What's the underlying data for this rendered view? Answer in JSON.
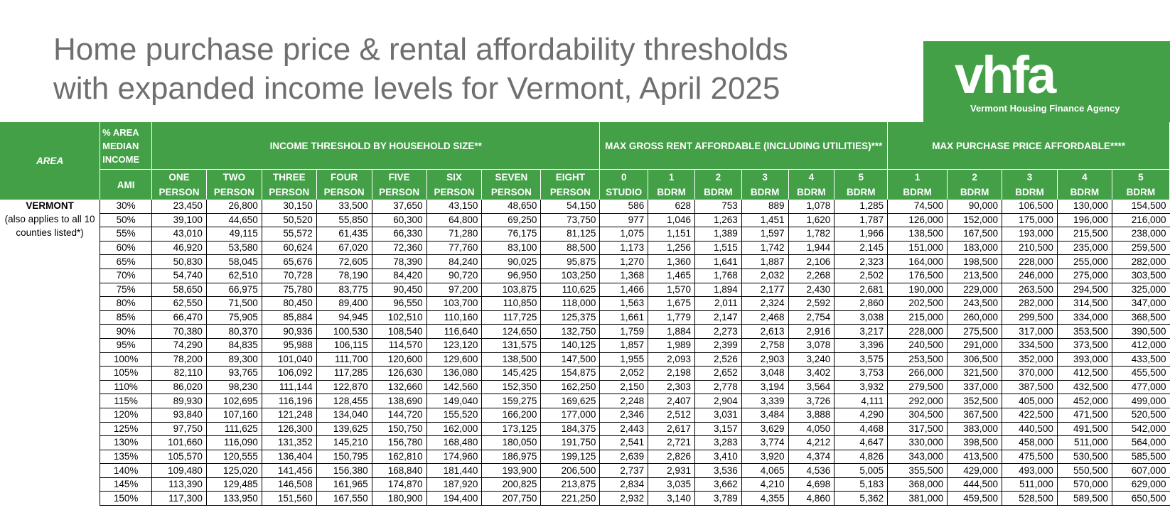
{
  "title": {
    "line1": "Home purchase price & rental affordability thresholds",
    "line2": "with expanded income levels for Vermont, April 2025"
  },
  "logo": {
    "wordmark": "vhfa",
    "name": "Vermont Housing Finance Agency"
  },
  "colors": {
    "header_green": "#43a047",
    "title_gray": "#6f6f6f"
  },
  "table": {
    "headers": {
      "area": "AREA",
      "pct_ami": "% AREA MEDIAN INCOME",
      "ami": "AMI",
      "income_group": "INCOME THRESHOLD BY HOUSEHOLD SIZE**",
      "rent_group": "MAX GROSS RENT AFFORDABLE (INCLUDING UTILITIES)***",
      "purchase_group": "MAX PURCHASE PRICE AFFORDABLE****"
    },
    "income_cols": [
      {
        "top": "ONE",
        "bottom": "PERSON"
      },
      {
        "top": "TWO",
        "bottom": "PERSON"
      },
      {
        "top": "THREE",
        "bottom": "PERSON"
      },
      {
        "top": "FOUR",
        "bottom": "PERSON"
      },
      {
        "top": "FIVE",
        "bottom": "PERSON"
      },
      {
        "top": "SIX",
        "bottom": "PERSON"
      },
      {
        "top": "SEVEN",
        "bottom": "PERSON"
      },
      {
        "top": "EIGHT",
        "bottom": "PERSON"
      }
    ],
    "rent_cols": [
      {
        "top": "0",
        "bottom": "STUDIO"
      },
      {
        "top": "1",
        "bottom": "BDRM"
      },
      {
        "top": "2",
        "bottom": "BDRM"
      },
      {
        "top": "3",
        "bottom": "BDRM"
      },
      {
        "top": "4",
        "bottom": "BDRM"
      },
      {
        "top": "5",
        "bottom": "BDRM"
      }
    ],
    "purchase_cols": [
      {
        "top": "1",
        "bottom": "BDRM"
      },
      {
        "top": "2",
        "bottom": "BDRM"
      },
      {
        "top": "3",
        "bottom": "BDRM"
      },
      {
        "top": "4",
        "bottom": "BDRM"
      },
      {
        "top": "5",
        "bottom": "BDRM"
      }
    ],
    "area": {
      "name": "VERMONT",
      "note": "(also applies to all 10 counties listed*)"
    },
    "rows": [
      {
        "pct": "30%",
        "income": [
          "23,450",
          "26,800",
          "30,150",
          "33,500",
          "37,650",
          "43,150",
          "48,650",
          "54,150"
        ],
        "rent": [
          "586",
          "628",
          "753",
          "889",
          "1,078",
          "1,285"
        ],
        "purchase": [
          "74,500",
          "90,000",
          "106,500",
          "130,000",
          "154,500"
        ]
      },
      {
        "pct": "50%",
        "income": [
          "39,100",
          "44,650",
          "50,520",
          "55,850",
          "60,300",
          "64,800",
          "69,250",
          "73,750"
        ],
        "rent": [
          "977",
          "1,046",
          "1,263",
          "1,451",
          "1,620",
          "1,787"
        ],
        "purchase": [
          "126,000",
          "152,000",
          "175,000",
          "196,000",
          "216,000"
        ]
      },
      {
        "pct": "55%",
        "income": [
          "43,010",
          "49,115",
          "55,572",
          "61,435",
          "66,330",
          "71,280",
          "76,175",
          "81,125"
        ],
        "rent": [
          "1,075",
          "1,151",
          "1,389",
          "1,597",
          "1,782",
          "1,966"
        ],
        "purchase": [
          "138,500",
          "167,500",
          "193,000",
          "215,500",
          "238,000"
        ]
      },
      {
        "pct": "60%",
        "income": [
          "46,920",
          "53,580",
          "60,624",
          "67,020",
          "72,360",
          "77,760",
          "83,100",
          "88,500"
        ],
        "rent": [
          "1,173",
          "1,256",
          "1,515",
          "1,742",
          "1,944",
          "2,145"
        ],
        "purchase": [
          "151,000",
          "183,000",
          "210,500",
          "235,000",
          "259,500"
        ]
      },
      {
        "pct": "65%",
        "income": [
          "50,830",
          "58,045",
          "65,676",
          "72,605",
          "78,390",
          "84,240",
          "90,025",
          "95,875"
        ],
        "rent": [
          "1,270",
          "1,360",
          "1,641",
          "1,887",
          "2,106",
          "2,323"
        ],
        "purchase": [
          "164,000",
          "198,500",
          "228,000",
          "255,000",
          "282,000"
        ]
      },
      {
        "pct": "70%",
        "income": [
          "54,740",
          "62,510",
          "70,728",
          "78,190",
          "84,420",
          "90,720",
          "96,950",
          "103,250"
        ],
        "rent": [
          "1,368",
          "1,465",
          "1,768",
          "2,032",
          "2,268",
          "2,502"
        ],
        "purchase": [
          "176,500",
          "213,500",
          "246,000",
          "275,000",
          "303,500"
        ]
      },
      {
        "pct": "75%",
        "income": [
          "58,650",
          "66,975",
          "75,780",
          "83,775",
          "90,450",
          "97,200",
          "103,875",
          "110,625"
        ],
        "rent": [
          "1,466",
          "1,570",
          "1,894",
          "2,177",
          "2,430",
          "2,681"
        ],
        "purchase": [
          "190,000",
          "229,000",
          "263,500",
          "294,500",
          "325,000"
        ]
      },
      {
        "pct": "80%",
        "income": [
          "62,550",
          "71,500",
          "80,450",
          "89,400",
          "96,550",
          "103,700",
          "110,850",
          "118,000"
        ],
        "rent": [
          "1,563",
          "1,675",
          "2,011",
          "2,324",
          "2,592",
          "2,860"
        ],
        "purchase": [
          "202,500",
          "243,500",
          "282,000",
          "314,500",
          "347,000"
        ]
      },
      {
        "pct": "85%",
        "income": [
          "66,470",
          "75,905",
          "85,884",
          "94,945",
          "102,510",
          "110,160",
          "117,725",
          "125,375"
        ],
        "rent": [
          "1,661",
          "1,779",
          "2,147",
          "2,468",
          "2,754",
          "3,038"
        ],
        "purchase": [
          "215,000",
          "260,000",
          "299,500",
          "334,000",
          "368,500"
        ]
      },
      {
        "pct": "90%",
        "income": [
          "70,380",
          "80,370",
          "90,936",
          "100,530",
          "108,540",
          "116,640",
          "124,650",
          "132,750"
        ],
        "rent": [
          "1,759",
          "1,884",
          "2,273",
          "2,613",
          "2,916",
          "3,217"
        ],
        "purchase": [
          "228,000",
          "275,500",
          "317,000",
          "353,500",
          "390,500"
        ]
      },
      {
        "pct": "95%",
        "income": [
          "74,290",
          "84,835",
          "95,988",
          "106,115",
          "114,570",
          "123,120",
          "131,575",
          "140,125"
        ],
        "rent": [
          "1,857",
          "1,989",
          "2,399",
          "2,758",
          "3,078",
          "3,396"
        ],
        "purchase": [
          "240,500",
          "291,000",
          "334,500",
          "373,500",
          "412,000"
        ]
      },
      {
        "pct": "100%",
        "income": [
          "78,200",
          "89,300",
          "101,040",
          "111,700",
          "120,600",
          "129,600",
          "138,500",
          "147,500"
        ],
        "rent": [
          "1,955",
          "2,093",
          "2,526",
          "2,903",
          "3,240",
          "3,575"
        ],
        "purchase": [
          "253,500",
          "306,500",
          "352,000",
          "393,000",
          "433,500"
        ]
      },
      {
        "pct": "105%",
        "income": [
          "82,110",
          "93,765",
          "106,092",
          "117,285",
          "126,630",
          "136,080",
          "145,425",
          "154,875"
        ],
        "rent": [
          "2,052",
          "2,198",
          "2,652",
          "3,048",
          "3,402",
          "3,753"
        ],
        "purchase": [
          "266,000",
          "321,500",
          "370,000",
          "412,500",
          "455,500"
        ]
      },
      {
        "pct": "110%",
        "income": [
          "86,020",
          "98,230",
          "111,144",
          "122,870",
          "132,660",
          "142,560",
          "152,350",
          "162,250"
        ],
        "rent": [
          "2,150",
          "2,303",
          "2,778",
          "3,194",
          "3,564",
          "3,932"
        ],
        "purchase": [
          "279,500",
          "337,000",
          "387,500",
          "432,500",
          "477,000"
        ]
      },
      {
        "pct": "115%",
        "income": [
          "89,930",
          "102,695",
          "116,196",
          "128,455",
          "138,690",
          "149,040",
          "159,275",
          "169,625"
        ],
        "rent": [
          "2,248",
          "2,407",
          "2,904",
          "3,339",
          "3,726",
          "4,111"
        ],
        "purchase": [
          "292,000",
          "352,500",
          "405,000",
          "452,000",
          "499,000"
        ]
      },
      {
        "pct": "120%",
        "income": [
          "93,840",
          "107,160",
          "121,248",
          "134,040",
          "144,720",
          "155,520",
          "166,200",
          "177,000"
        ],
        "rent": [
          "2,346",
          "2,512",
          "3,031",
          "3,484",
          "3,888",
          "4,290"
        ],
        "purchase": [
          "304,500",
          "367,500",
          "422,500",
          "471,500",
          "520,500"
        ]
      },
      {
        "pct": "125%",
        "income": [
          "97,750",
          "111,625",
          "126,300",
          "139,625",
          "150,750",
          "162,000",
          "173,125",
          "184,375"
        ],
        "rent": [
          "2,443",
          "2,617",
          "3,157",
          "3,629",
          "4,050",
          "4,468"
        ],
        "purchase": [
          "317,500",
          "383,000",
          "440,500",
          "491,500",
          "542,000"
        ]
      },
      {
        "pct": "130%",
        "income": [
          "101,660",
          "116,090",
          "131,352",
          "145,210",
          "156,780",
          "168,480",
          "180,050",
          "191,750"
        ],
        "rent": [
          "2,541",
          "2,721",
          "3,283",
          "3,774",
          "4,212",
          "4,647"
        ],
        "purchase": [
          "330,000",
          "398,500",
          "458,000",
          "511,000",
          "564,000"
        ]
      },
      {
        "pct": "135%",
        "income": [
          "105,570",
          "120,555",
          "136,404",
          "150,795",
          "162,810",
          "174,960",
          "186,975",
          "199,125"
        ],
        "rent": [
          "2,639",
          "2,826",
          "3,410",
          "3,920",
          "4,374",
          "4,826"
        ],
        "purchase": [
          "343,000",
          "413,500",
          "475,500",
          "530,500",
          "585,500"
        ]
      },
      {
        "pct": "140%",
        "income": [
          "109,480",
          "125,020",
          "141,456",
          "156,380",
          "168,840",
          "181,440",
          "193,900",
          "206,500"
        ],
        "rent": [
          "2,737",
          "2,931",
          "3,536",
          "4,065",
          "4,536",
          "5,005"
        ],
        "purchase": [
          "355,500",
          "429,000",
          "493,000",
          "550,500",
          "607,000"
        ]
      },
      {
        "pct": "145%",
        "income": [
          "113,390",
          "129,485",
          "146,508",
          "161,965",
          "174,870",
          "187,920",
          "200,825",
          "213,875"
        ],
        "rent": [
          "2,834",
          "3,035",
          "3,662",
          "4,210",
          "4,698",
          "5,183"
        ],
        "purchase": [
          "368,000",
          "444,500",
          "511,000",
          "570,000",
          "629,000"
        ]
      },
      {
        "pct": "150%",
        "income": [
          "117,300",
          "133,950",
          "151,560",
          "167,550",
          "180,900",
          "194,400",
          "207,750",
          "221,250"
        ],
        "rent": [
          "2,932",
          "3,140",
          "3,789",
          "4,355",
          "4,860",
          "5,362"
        ],
        "purchase": [
          "381,000",
          "459,500",
          "528,500",
          "589,500",
          "650,500"
        ]
      }
    ]
  }
}
